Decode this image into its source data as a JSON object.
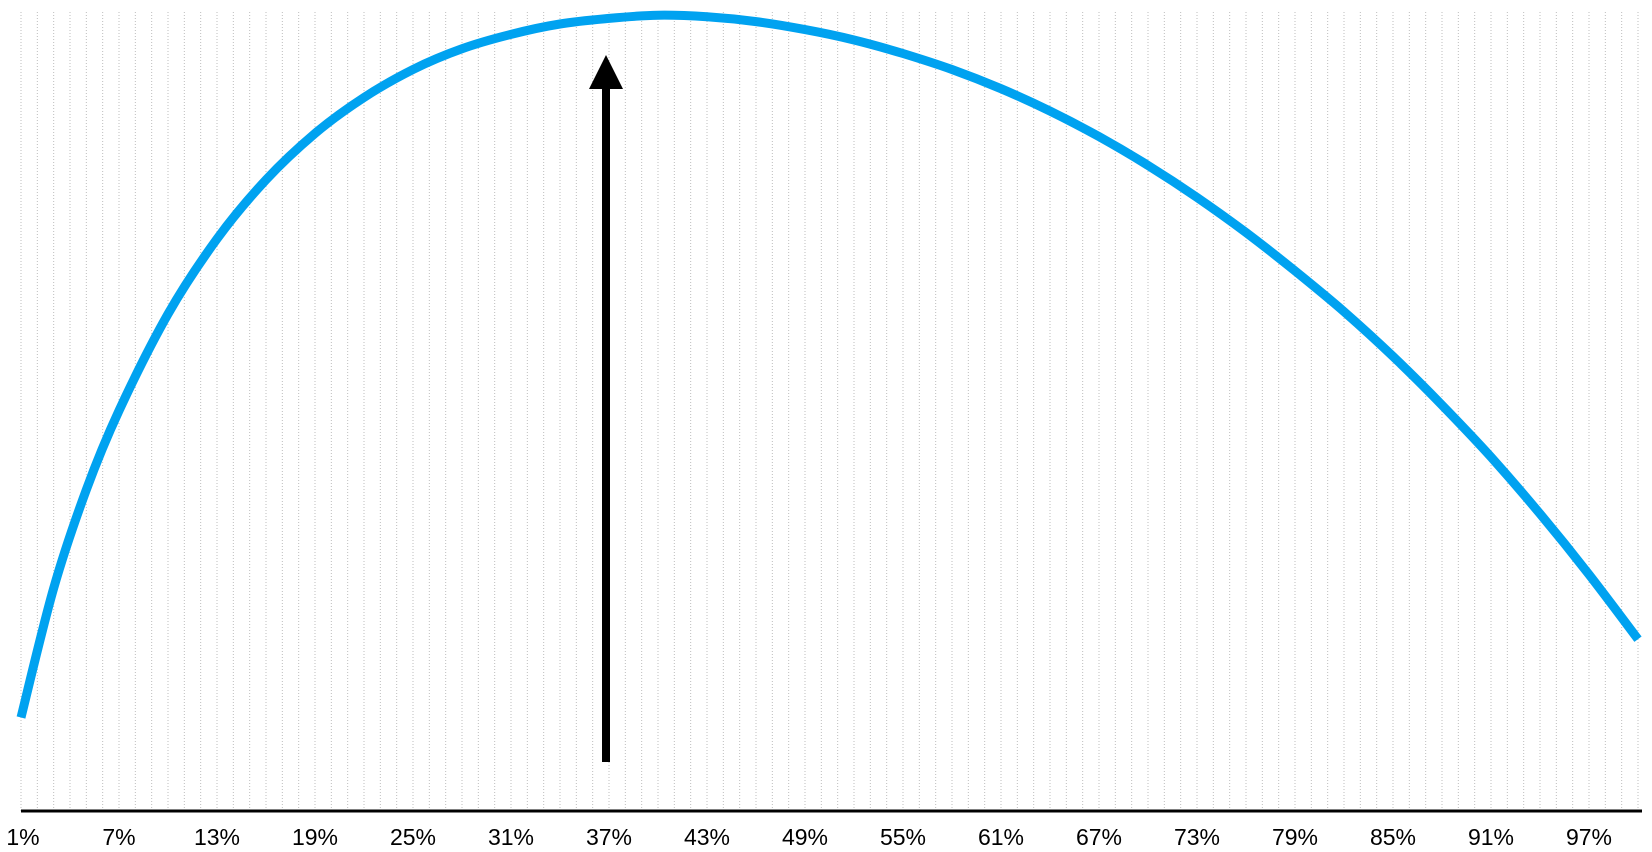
{
  "chart_data": {
    "type": "line",
    "title": "",
    "xlabel": "",
    "ylabel": "",
    "xlim": [
      1,
      100
    ],
    "grid": "vertical dotted line at every 1%",
    "x_tick_labels": [
      "1%",
      "7%",
      "13%",
      "19%",
      "25%",
      "31%",
      "37%",
      "43%",
      "49%",
      "55%",
      "61%",
      "67%",
      "73%",
      "79%",
      "85%",
      "91%",
      "97%"
    ],
    "series": [
      {
        "color": "#00a2f0",
        "x": [
          1,
          3,
          5,
          7,
          10,
          13,
          16,
          19,
          22,
          25,
          28,
          31,
          34,
          37,
          40,
          43,
          46,
          49,
          52,
          55,
          58,
          61,
          64,
          67,
          70,
          73,
          76,
          79,
          82,
          85,
          88,
          91,
          94,
          97,
          100
        ],
        "y": [
          0.117,
          0.279,
          0.402,
          0.501,
          0.622,
          0.716,
          0.79,
          0.848,
          0.893,
          0.928,
          0.954,
          0.972,
          0.985,
          0.992,
          0.996,
          0.994,
          0.988,
          0.978,
          0.965,
          0.948,
          0.928,
          0.904,
          0.876,
          0.844,
          0.808,
          0.768,
          0.724,
          0.676,
          0.625,
          0.569,
          0.508,
          0.443,
          0.372,
          0.296,
          0.215
        ]
      }
    ],
    "annotation": {
      "type": "arrow",
      "direction": "up",
      "at_x": 37
    },
    "colors": {
      "curve": "#00a2f0",
      "axis": "#000000",
      "grid": "#bdbdbd",
      "arrow": "#000000"
    }
  }
}
